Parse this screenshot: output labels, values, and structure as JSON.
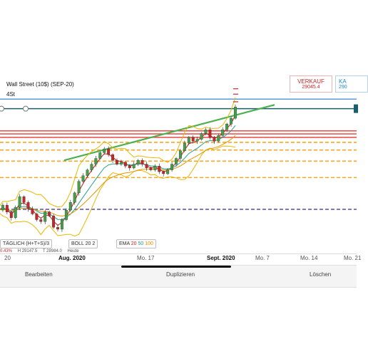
{
  "chart_data": {
    "type": "candlestick",
    "title": "Wall Street (10$) (SEP-20)",
    "interval": "4St",
    "x_tick_labels": [
      "20",
      "Aug. 2020",
      "Mo. 17",
      "Sept. 2020",
      "Mo. 7",
      "Mo. 14",
      "Mo. 21"
    ],
    "price_axis_visible": false,
    "sell_price": "29045.4",
    "buy_price_partial": "290",
    "series": [
      {
        "name": "Wall Street (10$) (SEP-20)",
        "kind": "candles",
        "close_path": [
          26350,
          26480,
          26300,
          26150,
          26420,
          26700,
          26550,
          26380,
          26250,
          26100,
          26050,
          26300,
          26200,
          25900,
          25850,
          26100,
          26350,
          26550,
          26800,
          27100,
          27250,
          27400,
          27550,
          27700,
          27850,
          27950,
          27800,
          27650,
          27550,
          27600,
          27500,
          27450,
          27550,
          27650,
          27550,
          27450,
          27400,
          27500,
          27350,
          27300,
          27400,
          27550,
          27700,
          27900,
          28100,
          28250,
          28150,
          28200,
          28350,
          28450,
          28250,
          28150,
          28300,
          28450,
          28600,
          28750,
          29045
        ]
      },
      {
        "name": "EMA 20",
        "color": "#c62828"
      },
      {
        "name": "EMA 50",
        "color": "#2a9d8f"
      },
      {
        "name": "EMA 100",
        "color": "#e69500"
      },
      {
        "name": "BOLL 20 2",
        "color": "#e6b800"
      }
    ],
    "trendline": {
      "color": "#4caf50",
      "from": [
        0.18,
        27650
      ],
      "to": [
        0.77,
        29100
      ]
    },
    "levels": [
      {
        "value": 29250,
        "color": "#4a90d9",
        "style": "solid"
      },
      {
        "value": 29000,
        "color": "#1b5e6b",
        "style": "solid"
      },
      {
        "value": 28420,
        "color": "#e53935",
        "style": "solid"
      },
      {
        "value": 28340,
        "color": "#e53935",
        "style": "solid"
      },
      {
        "value": 28250,
        "color": "#e53935",
        "style": "solid"
      },
      {
        "value": 28120,
        "color": "#f5a623",
        "style": "dashed"
      },
      {
        "value": 27920,
        "color": "#f5a623",
        "style": "dashed"
      },
      {
        "value": 27630,
        "color": "#f5a623",
        "style": "dashed"
      },
      {
        "value": 27200,
        "color": "#f5a623",
        "style": "dashed"
      },
      {
        "value": 26370,
        "color": "#5c4a9e",
        "style": "dashed"
      }
    ],
    "ylim": [
      25700,
      29700
    ],
    "colors": {
      "up": "#43a047",
      "down": "#c62828",
      "price_marker": "#1b5e6b"
    }
  },
  "header": {
    "title": "Wall Street (10$) (SEP-20)",
    "interval": "4St",
    "sell_label": "VERKAUF",
    "sell_value": "29045.4",
    "buy_label": "KA",
    "buy_value": "290"
  },
  "indicators": {
    "price_type": "TÄGLICH (H+T+S)/3",
    "boll": "BOLL 20 2",
    "ema_label": "EMA",
    "ema_periods": [
      "20",
      "50",
      "100"
    ]
  },
  "ohlc": {
    "change": "0.43%",
    "high": "H 29147.5",
    "low": "T 28984.0",
    "extra": "Heute"
  },
  "actions": {
    "edit": "Bearbeiten",
    "duplicate": "Duplizieren",
    "delete": "Löschen"
  }
}
